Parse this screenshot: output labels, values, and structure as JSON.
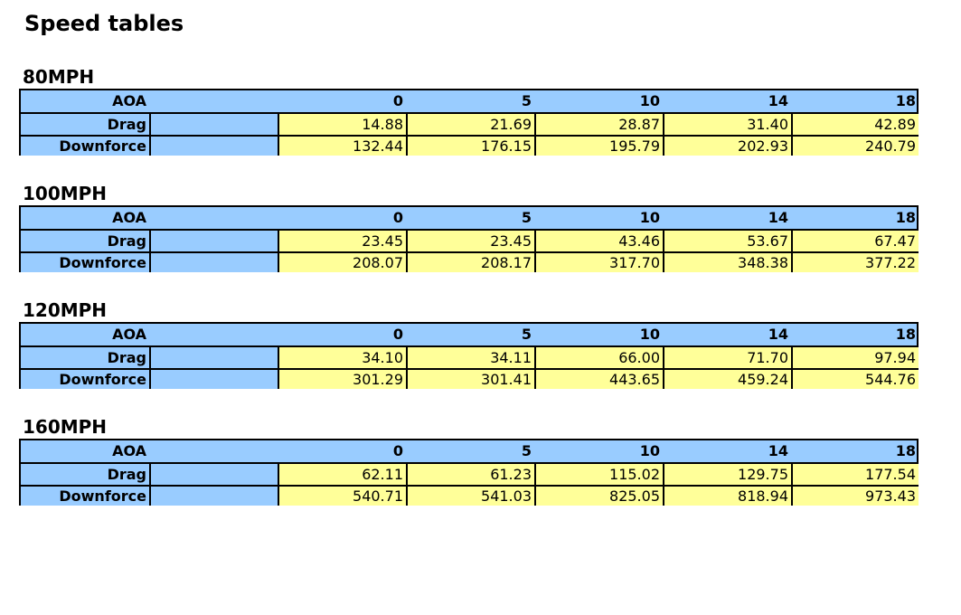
{
  "title": "Speed tables",
  "colors": {
    "header": "#99ccff",
    "values": "#ffff99"
  },
  "row_labels": {
    "aoa": "AOA",
    "drag": "Drag",
    "downforce": "Downforce"
  },
  "aoa": [
    "0",
    "5",
    "10",
    "14",
    "18"
  ],
  "tables": [
    {
      "speed": "80MPH",
      "drag": [
        "14.88",
        "21.69",
        "28.87",
        "31.40",
        "42.89"
      ],
      "downforce": [
        "132.44",
        "176.15",
        "195.79",
        "202.93",
        "240.79"
      ]
    },
    {
      "speed": "100MPH",
      "drag": [
        "23.45",
        "23.45",
        "43.46",
        "53.67",
        "67.47"
      ],
      "downforce": [
        "208.07",
        "208.17",
        "317.70",
        "348.38",
        "377.22"
      ]
    },
    {
      "speed": "120MPH",
      "drag": [
        "34.10",
        "34.11",
        "66.00",
        "71.70",
        "97.94"
      ],
      "downforce": [
        "301.29",
        "301.41",
        "443.65",
        "459.24",
        "544.76"
      ]
    },
    {
      "speed": "160MPH",
      "drag": [
        "62.11",
        "61.23",
        "115.02",
        "129.75",
        "177.54"
      ],
      "downforce": [
        "540.71",
        "541.03",
        "825.05",
        "818.94",
        "973.43"
      ]
    }
  ]
}
